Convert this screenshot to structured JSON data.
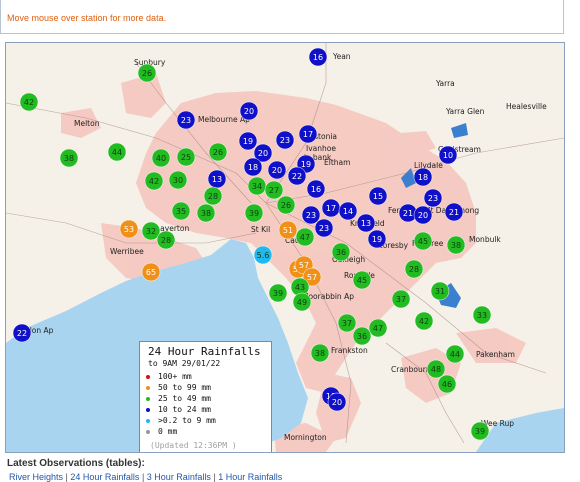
{
  "notice": "Move mouse over station for more data.",
  "legend": {
    "title": "24 Hour Rainfalls",
    "subtitle": "to 9AM 29/01/22",
    "ranges": [
      {
        "label": "100+ mm",
        "color": "#d81010"
      },
      {
        "label": "50  to 99 mm",
        "color": "#f09018"
      },
      {
        "label": "25  to 49 mm",
        "color": "#22bb22"
      },
      {
        "label": "10  to 24 mm",
        "color": "#1010c8"
      },
      {
        "label": ">0.2 to 9 mm",
        "color": "#20b8f0"
      },
      {
        "label": "0 mm",
        "color": "#999999"
      }
    ],
    "updated": "(Updated 12:36PM )"
  },
  "places": [
    "Sunbury",
    "Yean",
    "Healesville",
    "Yarra Glen",
    "Melton",
    "Melbourne Ap",
    "Astonia",
    "Ivanhoe",
    "ly bank",
    "Eltham",
    "Lilydale",
    "Coldstream",
    "Laverton",
    "Mt Dandenong",
    "St Kil",
    "Caul",
    "Oakleigh",
    "Rowville",
    "Knoxfield",
    "Ferntree",
    "Scoresby",
    "Monbulk",
    "Werribee",
    "Moorabbin Ap",
    "Frankston",
    "Cranbourne",
    "Pakenham",
    "Mornington",
    "Wee Rup",
    "Avalon Ap",
    "Yarra",
    "Fern"
  ],
  "stations": [
    {
      "v": "16",
      "c": "blue"
    },
    {
      "v": "26",
      "c": "green"
    },
    {
      "v": "42",
      "c": "green"
    },
    {
      "v": "20",
      "c": "blue"
    },
    {
      "v": "23",
      "c": "blue"
    },
    {
      "v": "38",
      "c": "green"
    },
    {
      "v": "44",
      "c": "green"
    },
    {
      "v": "19",
      "c": "blue"
    },
    {
      "v": "17",
      "c": "blue"
    },
    {
      "v": "23",
      "c": "blue"
    },
    {
      "v": "26",
      "c": "green"
    },
    {
      "v": "40",
      "c": "green"
    },
    {
      "v": "25",
      "c": "green"
    },
    {
      "v": "20",
      "c": "blue"
    },
    {
      "v": "10",
      "c": "blue"
    },
    {
      "v": "30",
      "c": "green"
    },
    {
      "v": "42",
      "c": "green"
    },
    {
      "v": "13",
      "c": "blue"
    },
    {
      "v": "18",
      "c": "blue"
    },
    {
      "v": "20",
      "c": "blue"
    },
    {
      "v": "19",
      "c": "blue"
    },
    {
      "v": "22",
      "c": "blue"
    },
    {
      "v": "18",
      "c": "blue"
    },
    {
      "v": "34",
      "c": "green"
    },
    {
      "v": "16",
      "c": "blue"
    },
    {
      "v": "28",
      "c": "green"
    },
    {
      "v": "27",
      "c": "green"
    },
    {
      "v": "15",
      "c": "blue"
    },
    {
      "v": "23",
      "c": "blue"
    },
    {
      "v": "35",
      "c": "green"
    },
    {
      "v": "38",
      "c": "green"
    },
    {
      "v": "39",
      "c": "green"
    },
    {
      "v": "26",
      "c": "green"
    },
    {
      "v": "17",
      "c": "blue"
    },
    {
      "v": "23",
      "c": "blue"
    },
    {
      "v": "14",
      "c": "blue"
    },
    {
      "v": "21",
      "c": "blue"
    },
    {
      "v": "20",
      "c": "blue"
    },
    {
      "v": "21",
      "c": "blue"
    },
    {
      "v": "53",
      "c": "orange"
    },
    {
      "v": "32",
      "c": "green"
    },
    {
      "v": "28",
      "c": "green"
    },
    {
      "v": "51",
      "c": "orange"
    },
    {
      "v": "47",
      "c": "green"
    },
    {
      "v": "23",
      "c": "blue"
    },
    {
      "v": "13",
      "c": "blue"
    },
    {
      "v": "19",
      "c": "blue"
    },
    {
      "v": "45",
      "c": "green"
    },
    {
      "v": "38",
      "c": "green"
    },
    {
      "v": "5.6",
      "c": "cyan"
    },
    {
      "v": "36",
      "c": "green"
    },
    {
      "v": "65",
      "c": "orange"
    },
    {
      "v": "57",
      "c": "orange"
    },
    {
      "v": "57",
      "c": "orange"
    },
    {
      "v": "57",
      "c": "orange"
    },
    {
      "v": "45",
      "c": "green"
    },
    {
      "v": "28",
      "c": "green"
    },
    {
      "v": "39",
      "c": "green"
    },
    {
      "v": "43",
      "c": "green"
    },
    {
      "v": "49",
      "c": "green"
    },
    {
      "v": "31",
      "c": "green"
    },
    {
      "v": "37",
      "c": "green"
    },
    {
      "v": "33",
      "c": "green"
    },
    {
      "v": "42",
      "c": "green"
    },
    {
      "v": "37",
      "c": "green"
    },
    {
      "v": "47",
      "c": "green"
    },
    {
      "v": "36",
      "c": "green"
    },
    {
      "v": "22",
      "c": "blue"
    },
    {
      "v": "38",
      "c": "green"
    },
    {
      "v": "44",
      "c": "green"
    },
    {
      "v": "48",
      "c": "green"
    },
    {
      "v": "46",
      "c": "green"
    },
    {
      "v": "18",
      "c": "blue"
    },
    {
      "v": "20",
      "c": "blue"
    },
    {
      "v": "39",
      "c": "green"
    }
  ],
  "colors": {
    "blue": "#1010c8",
    "green": "#22bb22",
    "orange": "#f09018",
    "cyan": "#20b8f0",
    "water": "#a8d4f0",
    "urban": "#f4c8c0"
  },
  "observations": {
    "heading": "Latest Observations (tables):",
    "links": [
      "River Heights",
      "24 Hour Rainfalls",
      "3 Hour Rainfalls",
      "1 Hour Rainfalls"
    ]
  }
}
